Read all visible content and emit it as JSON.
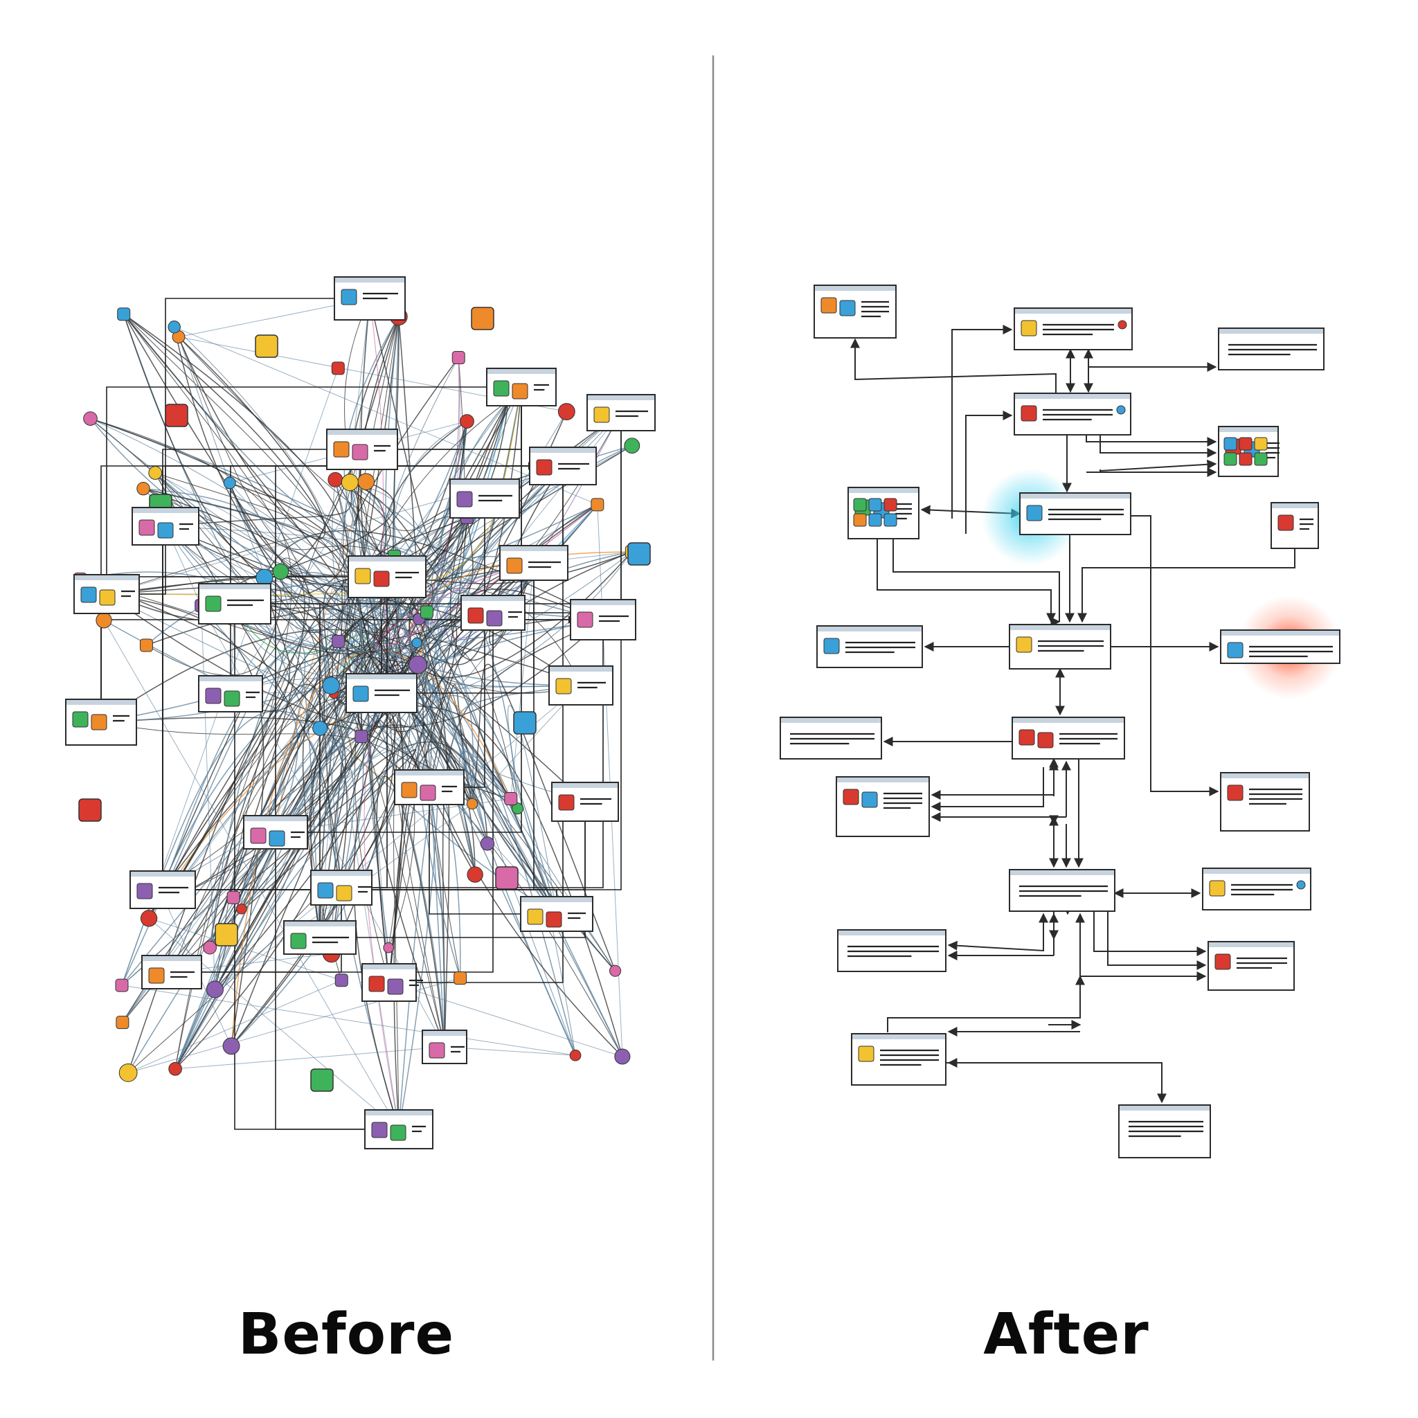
{
  "captions": {
    "before": "Before",
    "after": "After"
  },
  "palette": {
    "stroke": "#2b2b2b",
    "wire_blue": "#5b7f9a",
    "titlebar": "#c7d3de",
    "blue": "#3aa0d8",
    "green": "#3fb35a",
    "yellow": "#f2c230",
    "orange": "#ee8a2a",
    "red": "#d83a2f",
    "pink": "#d86aa8",
    "purple": "#8d5fb0",
    "glow_cyan": "#36d0ee",
    "glow_red": "#ff5a3a"
  }
}
